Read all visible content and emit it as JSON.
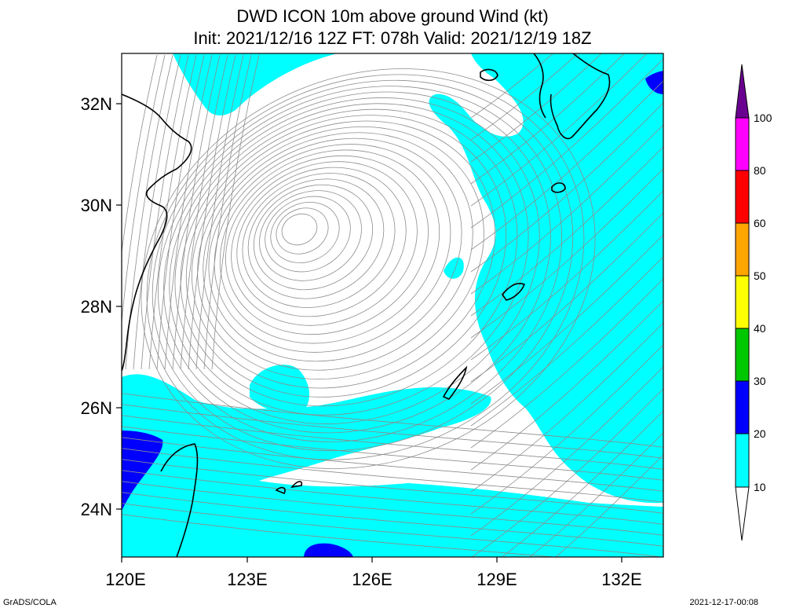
{
  "title_line1": "DWD ICON 10m above ground Wind (kt)",
  "title_line2": "Init: 2021/12/16 12Z  FT: 078h  Valid: 2021/12/19 18Z",
  "lat_labels": [
    "32N",
    "30N",
    "28N",
    "26N",
    "24N"
  ],
  "lon_labels": [
    "120E",
    "123E",
    "126E",
    "129E",
    "132E"
  ],
  "colorbar": {
    "labels": [
      "10",
      "20",
      "30",
      "40",
      "50",
      "60",
      "80",
      "100"
    ],
    "colors": [
      "#ffffff",
      "#00ffff",
      "#0000ff",
      "#00c800",
      "#ffff00",
      "#ffa500",
      "#ff0000",
      "#ff00ff",
      "#6a0090"
    ]
  },
  "colors": {
    "wind_10_20": "#00ffff",
    "wind_20_30": "#0000ff",
    "streamline": "#8c8c8c",
    "coastline": "#000000"
  },
  "footer_left": "GrADS/COLA",
  "footer_right": "2021-12-17-00:08"
}
